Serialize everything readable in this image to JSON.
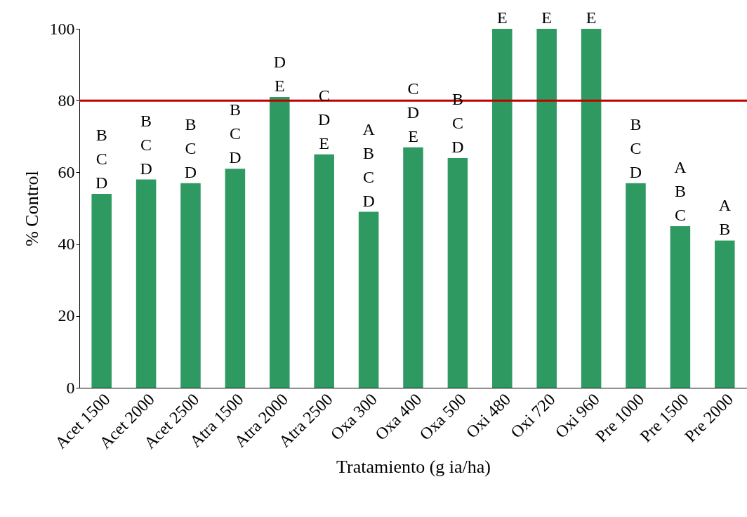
{
  "chart_data": {
    "type": "bar",
    "xlabel": "Tratamiento (g ia/ha)",
    "ylabel": "% Control",
    "categories": [
      "Acet 1500",
      "Acet 2000",
      "Acet 2500",
      "Atra 1500",
      "Atra 2000",
      "Atra 2500",
      "Oxa 300",
      "Oxa 400",
      "Oxa 500",
      "Oxi 480",
      "Oxi 720",
      "Oxi 960",
      "Pre 1000",
      "Pre 1500",
      "Pre 2000"
    ],
    "values": [
      54,
      58,
      57,
      61,
      81,
      65,
      49,
      67,
      64,
      100,
      100,
      100,
      57,
      45,
      41
    ],
    "color": "#2e9a62",
    "ylim": [
      0,
      100
    ],
    "yticks": [
      0,
      20,
      40,
      60,
      80,
      100
    ],
    "grid": false,
    "ref_lines": [
      {
        "axis": "y",
        "value": 80,
        "color": "#c00000"
      }
    ],
    "annotations": [
      {
        "text": "B\nC\nD",
        "x": "Acet 1500",
        "y": 54
      },
      {
        "text": "B\nC\nD",
        "x": "Acet 2000",
        "y": 58
      },
      {
        "text": "B\nC\nD",
        "x": "Acet 2500",
        "y": 57
      },
      {
        "text": "B\nC\nD",
        "x": "Atra 1500",
        "y": 61
      },
      {
        "text": "D\nE",
        "x": "Atra 2000",
        "y": 81
      },
      {
        "text": "C\nD\nE",
        "x": "Atra 2500",
        "y": 65
      },
      {
        "text": "A\nB\nC\nD",
        "x": "Oxa 300",
        "y": 49
      },
      {
        "text": "C\nD\nE",
        "x": "Oxa 400",
        "y": 67
      },
      {
        "text": "B\nC\nD",
        "x": "Oxa 500",
        "y": 64
      },
      {
        "text": "E",
        "x": "Oxi 480",
        "y": 100
      },
      {
        "text": "E",
        "x": "Oxi 720",
        "y": 100
      },
      {
        "text": "E",
        "x": "Oxi 960",
        "y": 100
      },
      {
        "text": "B\nC\nD",
        "x": "Pre 1000",
        "y": 57
      },
      {
        "text": "A\nB\nC",
        "x": "Pre 1500",
        "y": 45
      },
      {
        "text": "A\nB",
        "x": "Pre 2000",
        "y": 41
      }
    ]
  }
}
